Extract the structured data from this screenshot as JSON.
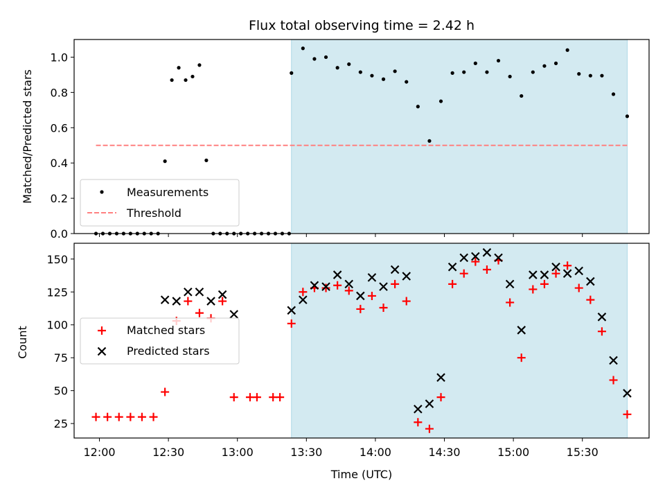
{
  "chart_data": [
    {
      "type": "scatter",
      "panel": "top",
      "title": "Flux total observing time = 2.42 h",
      "xlabel": "",
      "ylabel": "Matched/Predicted stars",
      "ylim": [
        0.0,
        1.1
      ],
      "yticks": [
        0.0,
        0.2,
        0.4,
        0.6,
        0.8,
        1.0
      ],
      "yticklabels": [
        "0.0",
        "0.2",
        "0.4",
        "0.6",
        "0.8",
        "1.0"
      ],
      "shaded_interval_minutes": [
        83.5,
        229.5
      ],
      "colors": {
        "shade": "#d3eaf1",
        "shade_edge": "#add8e6",
        "points": "#000000",
        "threshold": "#ff8080"
      },
      "legend": {
        "placement": "lower-left",
        "entries": [
          "Measurements",
          "Threshold"
        ]
      },
      "threshold": {
        "name": "Threshold",
        "value": 0.5,
        "x_range_minutes": [
          -1.5,
          229.5
        ]
      },
      "series": [
        {
          "name": "Measurements",
          "x_minutes": [
            -1.5,
            1.5,
            4.5,
            7.5,
            10.5,
            13.5,
            16.5,
            19.5,
            22.5,
            25.5,
            28.5,
            31.5,
            34.5,
            37.5,
            40.5,
            43.5,
            46.5,
            49.5,
            52.5,
            55.5,
            58.5,
            61.5,
            64.5,
            67.5,
            70.5,
            73.5,
            76.5,
            79.5,
            82.5,
            83.5,
            88.5,
            93.5,
            98.5,
            103.5,
            108.5,
            113.5,
            118.5,
            123.5,
            128.5,
            133.5,
            138.5,
            143.5,
            148.5,
            153.5,
            158.5,
            163.5,
            168.5,
            173.5,
            178.5,
            183.5,
            188.5,
            193.5,
            198.5,
            203.5,
            208.5,
            213.5,
            218.5,
            223.5,
            229.5
          ],
          "y": [
            0.0,
            0.0,
            0.0,
            0.0,
            0.0,
            0.0,
            0.0,
            0.0,
            0.0,
            0.0,
            0.41,
            0.87,
            0.94,
            0.87,
            0.89,
            0.955,
            0.415,
            0.0,
            0.0,
            0.0,
            0.0,
            0.0,
            0.0,
            0.0,
            0.0,
            0.0,
            0.0,
            0.0,
            0.0,
            0.91,
            1.05,
            0.99,
            1.0,
            0.94,
            0.96,
            0.915,
            0.895,
            0.875,
            0.92,
            0.86,
            0.72,
            0.525,
            0.75,
            0.91,
            0.915,
            0.965,
            0.915,
            0.98,
            0.89,
            0.78,
            0.915,
            0.95,
            0.965,
            1.04,
            0.905,
            0.895,
            0.895,
            0.79,
            0.665
          ]
        }
      ]
    },
    {
      "type": "scatter",
      "panel": "bottom",
      "xlabel": "Time (UTC)",
      "ylabel": "Count",
      "ylim": [
        14,
        162
      ],
      "yticks": [
        25,
        50,
        75,
        100,
        125,
        150
      ],
      "yticklabels": [
        "25",
        "50",
        "75",
        "100",
        "125",
        "150"
      ],
      "xlim_minutes": [
        -11,
        239
      ],
      "xticks_minutes": [
        0,
        30,
        60,
        90,
        120,
        150,
        180,
        210
      ],
      "xticklabels": [
        "12:00",
        "12:30",
        "13:00",
        "13:30",
        "14:00",
        "14:30",
        "15:00",
        "15:30"
      ],
      "shaded_interval_minutes": [
        83.5,
        229.5
      ],
      "colors": {
        "shade": "#d3eaf1",
        "shade_edge": "#add8e6",
        "matched": "#ff0000",
        "predicted": "#000000"
      },
      "legend": {
        "placement": "center-left",
        "entries": [
          "Matched stars",
          "Predicted stars"
        ]
      },
      "series": [
        {
          "name": "Matched stars",
          "marker": "plus",
          "x_minutes": [
            -1.5,
            3.5,
            8.5,
            13.5,
            18.5,
            23.5,
            28.5,
            33.5,
            38.5,
            43.5,
            48.5,
            53.5,
            58.5,
            65.5,
            68.5,
            75.5,
            78.5,
            83.5,
            88.5,
            93.5,
            98.5,
            103.5,
            108.5,
            113.5,
            118.5,
            123.5,
            128.5,
            133.5,
            138.5,
            143.5,
            148.5,
            153.5,
            158.5,
            163.5,
            168.5,
            173.5,
            178.5,
            183.5,
            188.5,
            193.5,
            198.5,
            203.5,
            208.5,
            213.5,
            218.5,
            223.5,
            229.5
          ],
          "y": [
            30,
            30,
            30,
            30,
            30,
            30,
            49,
            103,
            118,
            109,
            105,
            118,
            45,
            45,
            45,
            45,
            45,
            101,
            125,
            128,
            128,
            130,
            126,
            112,
            122,
            113,
            131,
            118,
            26,
            21,
            45,
            131,
            139,
            148,
            142,
            149,
            117,
            75,
            127,
            131,
            139,
            145,
            128,
            119,
            95,
            58,
            32
          ]
        },
        {
          "name": "Predicted stars",
          "marker": "x",
          "x_minutes": [
            28.5,
            33.5,
            38.5,
            43.5,
            48.5,
            53.5,
            58.5,
            83.5,
            88.5,
            93.5,
            98.5,
            103.5,
            108.5,
            113.5,
            118.5,
            123.5,
            128.5,
            133.5,
            138.5,
            143.5,
            148.5,
            153.5,
            158.5,
            163.5,
            168.5,
            173.5,
            178.5,
            183.5,
            188.5,
            193.5,
            198.5,
            203.5,
            208.5,
            213.5,
            218.5,
            223.5,
            229.5
          ],
          "y": [
            119,
            118,
            125,
            125,
            118,
            123,
            108,
            111,
            119,
            130,
            129,
            138,
            131,
            122,
            136,
            129,
            142,
            137,
            36,
            40,
            60,
            144,
            151,
            152,
            155,
            151,
            131,
            96,
            138,
            138,
            144,
            139,
            141,
            133,
            106,
            73,
            48
          ]
        }
      ]
    }
  ]
}
